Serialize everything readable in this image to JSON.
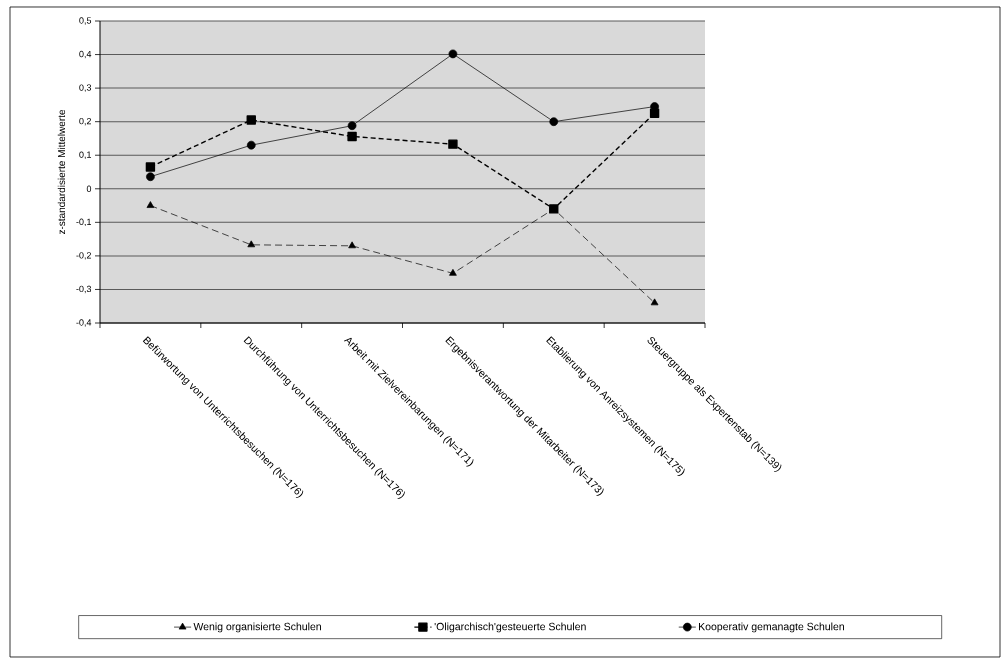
{
  "chart_data": {
    "type": "line",
    "ylabel": "z-standardisierte Mittelwerte",
    "categories": [
      "Befürwortung von Unterrichtsbesuchen (N=176)",
      "Durchführung von Unterrichtsbesuchen (N=176)",
      "Arbeit mit Zielvereinbarungen (N=171)",
      "Ergebnisverantwortung der Mitarbeiter (N=173)",
      "Etablierung von Anreizsystemen (N=175)",
      "Steuergruppe als Expertenstab (N=139)"
    ],
    "series": [
      {
        "name": "Wenig organisierte Schulen",
        "color": "#000000",
        "marker": "triangle",
        "line_style": "dashed",
        "values": [
          -0.05,
          -0.167,
          -0.17,
          -0.252,
          -0.06,
          -0.34
        ]
      },
      {
        "name": "'Oligarchisch'gesteuerte Schulen",
        "color": "#000000",
        "marker": "square",
        "line_style": "dashed",
        "values": [
          0.065,
          0.205,
          0.156,
          0.133,
          -0.06,
          0.225
        ]
      },
      {
        "name": "Kooperativ gemanagte Schulen",
        "color": "#000000",
        "marker": "circle",
        "line_style": "solid",
        "values": [
          0.036,
          0.13,
          0.188,
          0.402,
          0.2,
          0.245
        ]
      }
    ],
    "ylim": [
      -0.4,
      0.5
    ],
    "yticks": [
      {
        "value": -0.4,
        "label": "-0,4"
      },
      {
        "value": -0.3,
        "label": "-0,3"
      },
      {
        "value": -0.2,
        "label": "-0,2"
      },
      {
        "value": -0.1,
        "label": "-0,1"
      },
      0,
      {
        "value": 0.1,
        "label": "0,1"
      },
      {
        "value": 0.2,
        "label": "0,2"
      },
      {
        "value": 0.3,
        "label": "0,3"
      },
      {
        "value": 0.4,
        "label": "0,4"
      },
      {
        "value": 0.5,
        "label": "0,5"
      }
    ],
    "grid": "y",
    "legend": "bottom"
  }
}
